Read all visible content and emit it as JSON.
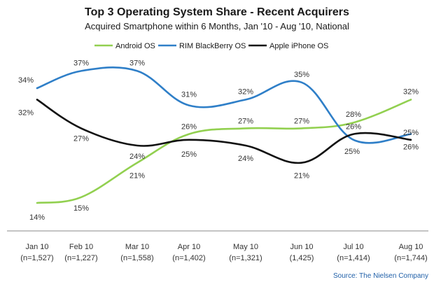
{
  "chart_data": {
    "type": "line",
    "title": "Top 3 Operating System Share - Recent Acquirers",
    "subtitle": "Acquired Smartphone within 6 Months, Jan '10 - Aug '10, National",
    "categories": [
      [
        "Jan 10",
        "(n=1,527)"
      ],
      [
        "Feb 10",
        "(n=1,227)"
      ],
      [
        "Mar 10",
        "(n=1,558)"
      ],
      [
        "Apr 10",
        "(n=1,402)"
      ],
      [
        "May 10",
        "(n=1,321)"
      ],
      [
        "Jun 10",
        "(1,425)"
      ],
      [
        "Jul 10",
        "(n=1,414)"
      ],
      [
        "Aug 10",
        "(n=1,744)"
      ]
    ],
    "series": [
      {
        "name": "Android OS",
        "color": "#92d050",
        "values": [
          14,
          15,
          21,
          26,
          27,
          27,
          28,
          32
        ],
        "labels": [
          "14%",
          "15%",
          "21%",
          "26%",
          "27%",
          "27%",
          "28%",
          "32%"
        ]
      },
      {
        "name": "RIM BlackBerry OS",
        "color": "#2f7fc8",
        "values": [
          34,
          37,
          37,
          31,
          32,
          35,
          25,
          26
        ],
        "labels": [
          "34%",
          "37%",
          "37%",
          "31%",
          "32%",
          "35%",
          "25%",
          "26%"
        ]
      },
      {
        "name": "Apple iPhone OS",
        "color": "#111111",
        "values": [
          32,
          27,
          24,
          25,
          24,
          21,
          26,
          25
        ],
        "labels": [
          "32%",
          "27%",
          "24%",
          "25%",
          "24%",
          "21%",
          "26%",
          "25%"
        ]
      }
    ],
    "legend_position": "top",
    "grid": false,
    "source": "Source: The Nielsen Company"
  }
}
